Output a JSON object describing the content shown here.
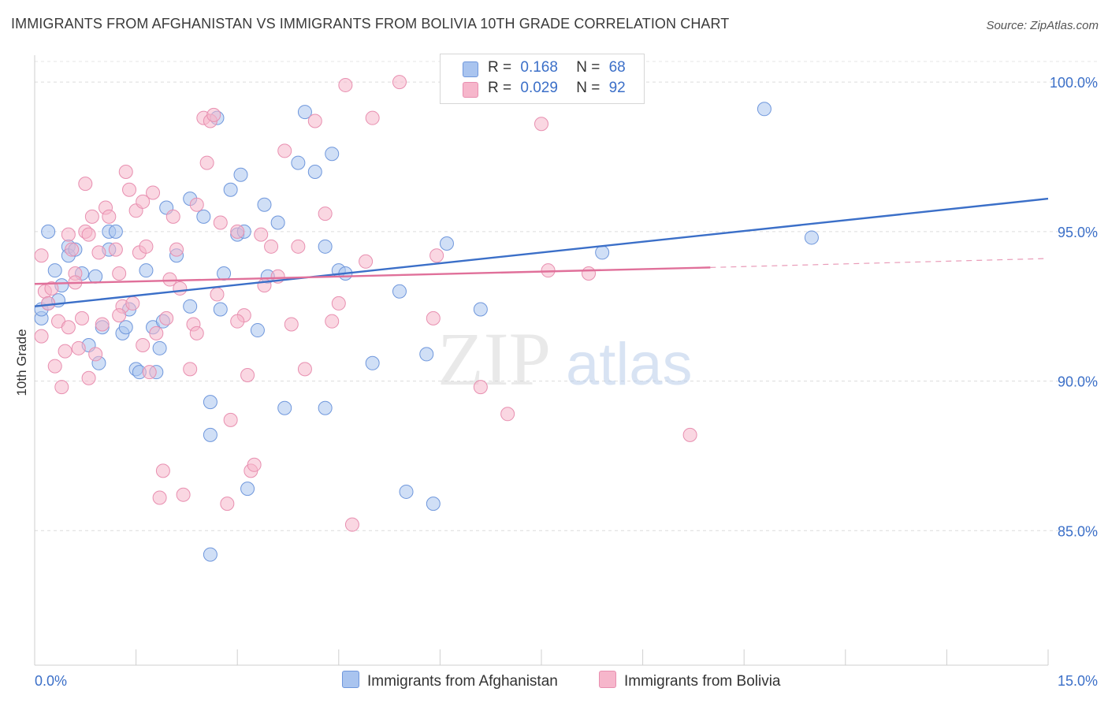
{
  "title": "IMMIGRANTS FROM AFGHANISTAN VS IMMIGRANTS FROM BOLIVIA 10TH GRADE CORRELATION CHART",
  "source": "Source: ZipAtlas.com",
  "watermark": {
    "zip": "ZIP",
    "atlas": "atlas"
  },
  "legend": {
    "rows": [
      {
        "r_label": "R =",
        "r_value": "0.168",
        "n_label": "N =",
        "n_value": "68",
        "color": "#a9c4ef"
      },
      {
        "r_label": "R =",
        "r_value": "0.029",
        "n_label": "N =",
        "n_value": "92",
        "color": "#f6b6cb"
      }
    ]
  },
  "bottom_legend": [
    {
      "label": "Immigrants from Afghanistan",
      "color": "#a9c4ef"
    },
    {
      "label": "Immigrants from Bolivia",
      "color": "#f6b6cb"
    }
  ],
  "chart_data": {
    "type": "scatter",
    "title": "IMMIGRANTS FROM AFGHANISTAN VS IMMIGRANTS FROM BOLIVIA 10TH GRADE CORRELATION CHART",
    "xlabel": "",
    "ylabel": "10th Grade",
    "xlim": [
      0,
      15
    ],
    "ylim": [
      80.5,
      100.9
    ],
    "x_tick_labels": [
      "0.0%",
      "15.0%"
    ],
    "y_ticks": [
      85,
      90,
      95,
      100
    ],
    "y_tick_labels": [
      "85.0%",
      "90.0%",
      "95.0%",
      "100.0%"
    ],
    "grid": true,
    "colors": {
      "afghanistan": "#3b6fc8",
      "bolivia": "#e0709a",
      "tick_text": "#3b6fc8"
    },
    "series": [
      {
        "name": "Immigrants from Afghanistan",
        "points": [
          [
            0.1,
            92.1
          ],
          [
            0.1,
            92.4
          ],
          [
            0.2,
            92.6
          ],
          [
            0.2,
            95.0
          ],
          [
            0.3,
            93.7
          ],
          [
            0.35,
            92.7
          ],
          [
            0.4,
            93.2
          ],
          [
            0.5,
            94.5
          ],
          [
            0.5,
            94.2
          ],
          [
            0.6,
            94.4
          ],
          [
            0.7,
            93.6
          ],
          [
            0.8,
            91.2
          ],
          [
            0.9,
            93.5
          ],
          [
            0.95,
            90.6
          ],
          [
            1.0,
            91.8
          ],
          [
            1.1,
            95.0
          ],
          [
            1.2,
            95.0
          ],
          [
            1.3,
            91.6
          ],
          [
            1.35,
            91.8
          ],
          [
            1.4,
            92.4
          ],
          [
            1.5,
            90.4
          ],
          [
            1.55,
            90.3
          ],
          [
            1.65,
            93.7
          ],
          [
            1.75,
            91.8
          ],
          [
            1.8,
            90.3
          ],
          [
            1.85,
            91.1
          ],
          [
            1.9,
            92.0
          ],
          [
            1.95,
            95.8
          ],
          [
            2.1,
            94.2
          ],
          [
            2.3,
            92.5
          ],
          [
            2.3,
            96.1
          ],
          [
            2.5,
            95.5
          ],
          [
            2.6,
            89.3
          ],
          [
            2.6,
            88.2
          ],
          [
            2.7,
            98.8
          ],
          [
            2.75,
            92.4
          ],
          [
            2.8,
            93.6
          ],
          [
            2.9,
            96.4
          ],
          [
            3.0,
            94.9
          ],
          [
            3.05,
            96.9
          ],
          [
            3.1,
            95.0
          ],
          [
            3.3,
            91.7
          ],
          [
            3.4,
            95.9
          ],
          [
            3.45,
            93.5
          ],
          [
            3.6,
            95.3
          ],
          [
            3.7,
            89.1
          ],
          [
            3.9,
            97.3
          ],
          [
            4.0,
            99.0
          ],
          [
            4.15,
            97.0
          ],
          [
            4.3,
            94.5
          ],
          [
            4.3,
            89.1
          ],
          [
            4.4,
            97.6
          ],
          [
            4.5,
            93.7
          ],
          [
            4.6,
            93.6
          ],
          [
            5.0,
            90.6
          ],
          [
            5.4,
            93.0
          ],
          [
            5.5,
            86.3
          ],
          [
            5.9,
            85.9
          ],
          [
            5.8,
            90.9
          ],
          [
            6.1,
            94.6
          ],
          [
            6.6,
            92.4
          ],
          [
            7.1,
            100.0
          ],
          [
            8.4,
            94.3
          ],
          [
            10.8,
            99.1
          ],
          [
            11.5,
            94.8
          ],
          [
            2.6,
            84.2
          ],
          [
            3.15,
            86.4
          ],
          [
            1.1,
            94.4
          ]
        ]
      },
      {
        "name": "Immigrants from Bolivia",
        "points": [
          [
            0.1,
            91.5
          ],
          [
            0.1,
            94.2
          ],
          [
            0.15,
            93.0
          ],
          [
            0.2,
            92.6
          ],
          [
            0.25,
            93.1
          ],
          [
            0.3,
            90.5
          ],
          [
            0.35,
            92.0
          ],
          [
            0.4,
            89.8
          ],
          [
            0.45,
            91.0
          ],
          [
            0.5,
            91.8
          ],
          [
            0.55,
            94.4
          ],
          [
            0.6,
            93.6
          ],
          [
            0.6,
            93.3
          ],
          [
            0.65,
            91.1
          ],
          [
            0.7,
            92.1
          ],
          [
            0.75,
            95.0
          ],
          [
            0.75,
            96.6
          ],
          [
            0.8,
            94.9
          ],
          [
            0.85,
            95.5
          ],
          [
            0.9,
            90.9
          ],
          [
            0.95,
            94.3
          ],
          [
            1.0,
            91.9
          ],
          [
            1.05,
            95.8
          ],
          [
            1.1,
            95.5
          ],
          [
            1.2,
            94.4
          ],
          [
            1.25,
            93.6
          ],
          [
            1.3,
            92.5
          ],
          [
            1.35,
            97.0
          ],
          [
            1.4,
            96.4
          ],
          [
            1.45,
            92.6
          ],
          [
            1.5,
            95.7
          ],
          [
            1.55,
            94.3
          ],
          [
            1.6,
            96.0
          ],
          [
            1.65,
            94.5
          ],
          [
            1.7,
            90.3
          ],
          [
            1.75,
            96.3
          ],
          [
            1.8,
            91.6
          ],
          [
            1.85,
            86.1
          ],
          [
            1.9,
            87.0
          ],
          [
            1.95,
            92.1
          ],
          [
            2.0,
            93.4
          ],
          [
            2.05,
            95.5
          ],
          [
            2.1,
            94.4
          ],
          [
            2.15,
            93.1
          ],
          [
            2.2,
            86.2
          ],
          [
            2.3,
            90.4
          ],
          [
            2.35,
            91.9
          ],
          [
            2.4,
            95.9
          ],
          [
            2.5,
            98.8
          ],
          [
            2.55,
            97.3
          ],
          [
            2.6,
            98.7
          ],
          [
            2.65,
            98.9
          ],
          [
            2.7,
            92.9
          ],
          [
            2.75,
            95.3
          ],
          [
            2.85,
            85.9
          ],
          [
            2.9,
            88.7
          ],
          [
            3.0,
            95.0
          ],
          [
            3.1,
            92.2
          ],
          [
            3.15,
            90.2
          ],
          [
            3.2,
            87.0
          ],
          [
            3.25,
            87.2
          ],
          [
            3.35,
            94.9
          ],
          [
            3.4,
            93.2
          ],
          [
            3.5,
            94.5
          ],
          [
            3.6,
            93.5
          ],
          [
            3.7,
            97.7
          ],
          [
            3.8,
            91.9
          ],
          [
            3.9,
            94.5
          ],
          [
            4.0,
            90.4
          ],
          [
            4.15,
            98.7
          ],
          [
            4.3,
            95.6
          ],
          [
            4.5,
            92.6
          ],
          [
            4.6,
            99.9
          ],
          [
            4.7,
            85.2
          ],
          [
            4.9,
            94.0
          ],
          [
            5.0,
            98.8
          ],
          [
            5.4,
            100.0
          ],
          [
            5.9,
            92.1
          ],
          [
            5.95,
            94.2
          ],
          [
            6.6,
            89.8
          ],
          [
            7.0,
            88.9
          ],
          [
            7.5,
            98.6
          ],
          [
            7.6,
            93.7
          ],
          [
            8.2,
            93.6
          ],
          [
            9.7,
            88.2
          ],
          [
            0.5,
            94.9
          ],
          [
            0.8,
            90.1
          ],
          [
            1.25,
            92.2
          ],
          [
            1.6,
            91.2
          ],
          [
            2.4,
            91.6
          ],
          [
            3.0,
            92.0
          ],
          [
            4.4,
            92.0
          ]
        ]
      }
    ],
    "trendlines": [
      {
        "series": "Immigrants from Afghanistan",
        "x": [
          0,
          15
        ],
        "y": [
          92.5,
          96.1
        ],
        "style": "solid"
      },
      {
        "series": "Immigrants from Bolivia",
        "x": [
          0,
          10
        ],
        "y": [
          93.25,
          93.8
        ],
        "style": "solid"
      },
      {
        "series": "Immigrants from Bolivia",
        "x": [
          10,
          15
        ],
        "y": [
          93.8,
          94.1
        ],
        "style": "dashed"
      }
    ]
  }
}
